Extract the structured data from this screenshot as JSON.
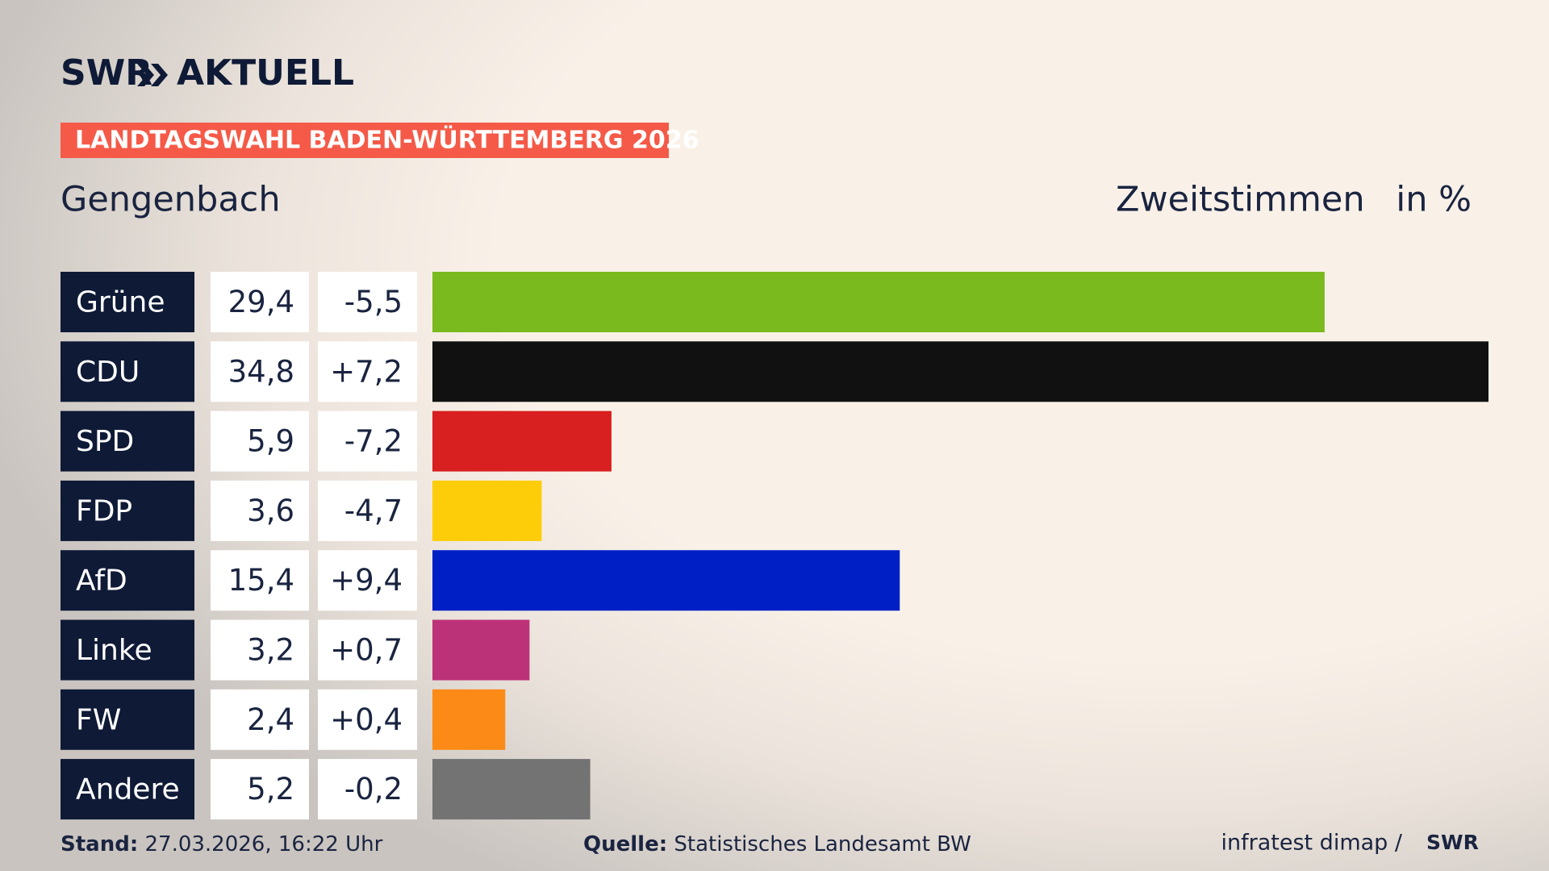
{
  "chart_data": {
    "type": "bar",
    "brand": "SWR",
    "program": "AKTUELL",
    "title": "LANDTAGSWAHL BADEN-WÜRTTEMBERG 2026",
    "subtitle": "Gengenbach",
    "value_label": "Zweitstimmen",
    "unit": "in %",
    "categories": [
      "Grüne",
      "CDU",
      "SPD",
      "FDP",
      "AfD",
      "Linke",
      "FW",
      "Andere"
    ],
    "values": [
      29.4,
      34.8,
      5.9,
      3.6,
      15.4,
      3.2,
      2.4,
      5.2
    ],
    "value_labels": [
      "29,4",
      "34,8",
      "5,9",
      "3,6",
      "15,4",
      "3,2",
      "2,4",
      "5,2"
    ],
    "change_labels": [
      "-5,5",
      "+7,2",
      "-7,2",
      "-4,7",
      "+9,4",
      "+0,7",
      "+0,4",
      "-0,2"
    ],
    "colors": [
      "#7aba1e",
      "#111111",
      "#d7201f",
      "#fecd0a",
      "#0020c6",
      "#bc3278",
      "#fb8a16",
      "#737373"
    ],
    "xlim": [
      0,
      34.8
    ],
    "footer": {
      "date_label": "Stand:",
      "date": "27.03.2026, 16:22 Uhr",
      "source_label": "Quelle:",
      "source": "Statistisches Landesamt BW",
      "credit": "infratest dimap /"
    }
  }
}
